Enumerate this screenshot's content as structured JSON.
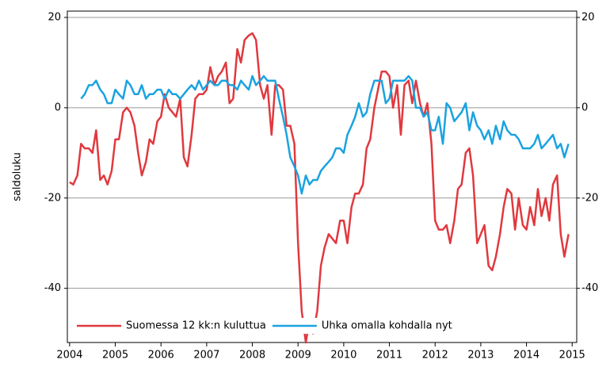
{
  "chart_data": {
    "type": "line",
    "y_label": "saldoluku",
    "x": [
      2004.0,
      2004.08,
      2004.17,
      2004.25,
      2004.33,
      2004.42,
      2004.5,
      2004.58,
      2004.67,
      2004.75,
      2004.83,
      2004.92,
      2005.0,
      2005.08,
      2005.17,
      2005.25,
      2005.33,
      2005.42,
      2005.5,
      2005.58,
      2005.67,
      2005.75,
      2005.83,
      2005.92,
      2006.0,
      2006.08,
      2006.17,
      2006.25,
      2006.33,
      2006.42,
      2006.5,
      2006.58,
      2006.67,
      2006.75,
      2006.83,
      2006.92,
      2007.0,
      2007.08,
      2007.17,
      2007.25,
      2007.33,
      2007.42,
      2007.5,
      2007.58,
      2007.67,
      2007.75,
      2007.83,
      2007.92,
      2008.0,
      2008.08,
      2008.17,
      2008.25,
      2008.33,
      2008.42,
      2008.5,
      2008.58,
      2008.67,
      2008.75,
      2008.83,
      2008.92,
      2009.0,
      2009.08,
      2009.17,
      2009.25,
      2009.33,
      2009.42,
      2009.5,
      2009.58,
      2009.67,
      2009.75,
      2009.83,
      2009.92,
      2010.0,
      2010.08,
      2010.17,
      2010.25,
      2010.33,
      2010.42,
      2010.5,
      2010.58,
      2010.67,
      2010.75,
      2010.83,
      2010.92,
      2011.0,
      2011.08,
      2011.17,
      2011.25,
      2011.33,
      2011.42,
      2011.5,
      2011.58,
      2011.67,
      2011.75,
      2011.83,
      2011.92,
      2012.0,
      2012.08,
      2012.17,
      2012.25,
      2012.33,
      2012.42,
      2012.5,
      2012.58,
      2012.67,
      2012.75,
      2012.83,
      2012.92,
      2013.0,
      2013.08,
      2013.17,
      2013.25,
      2013.33,
      2013.42,
      2013.5,
      2013.58,
      2013.67,
      2013.75,
      2013.83,
      2013.92,
      2014.0,
      2014.08,
      2014.17,
      2014.25,
      2014.33,
      2014.42,
      2014.5,
      2014.58,
      2014.67,
      2014.75,
      2014.83,
      2014.92
    ],
    "series": [
      {
        "name": "Suomessa 12 kk:n kuluttua",
        "color": "#e0393e",
        "values": [
          -16.5,
          -17,
          -15,
          -8,
          -9,
          -9,
          -10,
          -5,
          -16,
          -15,
          -17,
          -14,
          -7,
          -7,
          -1,
          0,
          -1,
          -4,
          -10,
          -15,
          -12,
          -7,
          -8,
          -3,
          -2,
          3,
          0,
          -1,
          -2,
          2,
          -11,
          -13,
          -6,
          2,
          3,
          3,
          4,
          9,
          5,
          7,
          8,
          10,
          1,
          2,
          13,
          10,
          15,
          16,
          16.5,
          15,
          5,
          2,
          5,
          -6,
          5,
          5,
          4,
          -4,
          -4,
          -8,
          -30,
          -45,
          -52,
          -47,
          -50,
          -45,
          -35,
          -31,
          -28,
          -29,
          -30,
          -25,
          -25,
          -30,
          -22,
          -19,
          -19,
          -17,
          -9,
          -7,
          0,
          4,
          8,
          8,
          7,
          0,
          5,
          -6,
          5,
          6,
          1,
          6,
          1,
          -2,
          1,
          -8,
          -25,
          -27,
          -27,
          -26,
          -30,
          -25,
          -18,
          -17,
          -10,
          -9,
          -15,
          -30,
          -28,
          -26,
          -35,
          -36,
          -33,
          -28,
          -22,
          -18,
          -19,
          -27,
          -20,
          -26,
          -27,
          -22,
          -26,
          -18,
          -24,
          -20,
          -25,
          -17,
          -15,
          -28,
          -33,
          -28
        ]
      },
      {
        "name": "Uhka omalla kohdalla nyt",
        "color": "#1aa3e0",
        "values": [
          null,
          null,
          null,
          2,
          3,
          5,
          5,
          6,
          4,
          3,
          1,
          1,
          4,
          3,
          2,
          6,
          5,
          3,
          3,
          5,
          2,
          3,
          3,
          4,
          4,
          2,
          4,
          3,
          3,
          2,
          3,
          4,
          5,
          4,
          6,
          4,
          5,
          6,
          5,
          5,
          6,
          6,
          5,
          5,
          4,
          6,
          5,
          4,
          7,
          5,
          6,
          7,
          6,
          6,
          6,
          2,
          -2,
          -6,
          -11,
          -13,
          -15,
          -19,
          -15,
          -17,
          -16,
          -16,
          -14,
          -13,
          -12,
          -11,
          -9,
          -9,
          -10,
          -6,
          -4,
          -2,
          1,
          -2,
          -1,
          3,
          6,
          6,
          6,
          1,
          2,
          6,
          6,
          6,
          6,
          7,
          6,
          0,
          0,
          -2,
          -1,
          -5,
          -5,
          -2,
          -8,
          1,
          0,
          -3,
          -2,
          -1,
          1,
          -5,
          -1,
          -4,
          -5,
          -7,
          -5,
          -8,
          -4,
          -7,
          -3,
          -5,
          -6,
          -6,
          -7,
          -9,
          -9,
          -9,
          -8,
          -6,
          -9,
          -8,
          -7,
          -6,
          -9,
          -8,
          -11,
          -8
        ]
      }
    ],
    "xlim": [
      2003.95,
      2015.1
    ],
    "xticks": [
      2004,
      2005,
      2006,
      2007,
      2008,
      2009,
      2010,
      2011,
      2012,
      2013,
      2014,
      2015
    ],
    "ylim": [
      -52,
      21.4
    ],
    "yticks": [
      -40,
      -20,
      0,
      20
    ],
    "grid": true,
    "legend": "bottom-left"
  }
}
